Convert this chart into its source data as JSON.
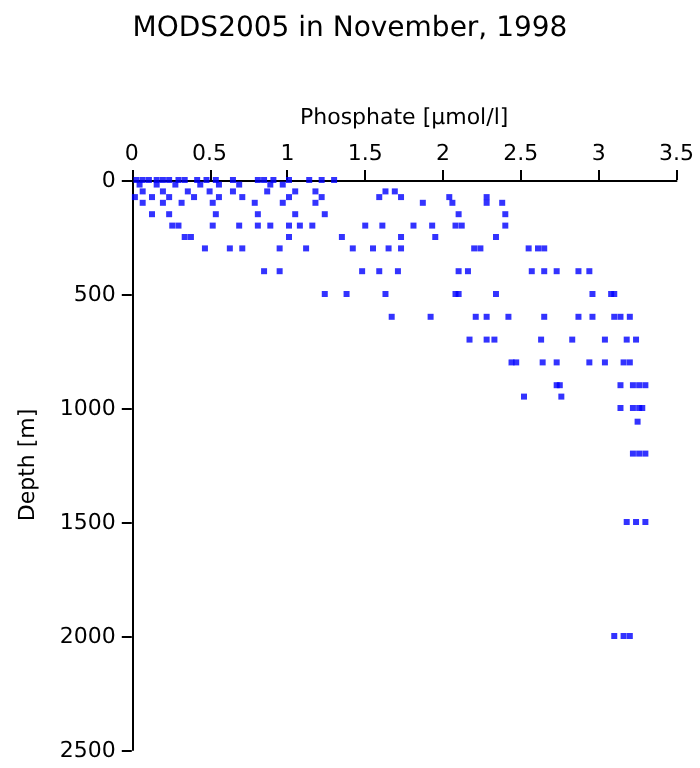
{
  "chart_data": {
    "type": "scatter",
    "title": "MODS2005 in November, 1998",
    "xlabel": "Phosphate [µmol/l]",
    "ylabel": "Depth [m]",
    "xlim": [
      0,
      3.5
    ],
    "xticks": [
      0,
      0.5,
      1,
      1.5,
      2,
      2.5,
      3,
      3.5
    ],
    "ylim": [
      2500,
      0
    ],
    "yticks": [
      0,
      500,
      1000,
      1500,
      2000,
      2500
    ],
    "grid": false,
    "marker": "square",
    "series": [
      {
        "color": "#0000ff",
        "x": [
          0.03,
          0.07,
          0.11,
          0.16,
          0.2,
          0.24,
          0.3,
          0.34,
          0.42,
          0.48,
          0.54,
          0.65,
          0.81,
          0.85,
          0.91,
          1.01,
          1.14,
          1.22,
          1.3,
          0.05,
          0.16,
          0.28,
          0.44,
          0.56,
          0.69,
          0.89,
          0.97,
          0.07,
          0.2,
          0.36,
          0.5,
          0.65,
          0.87,
          1.05,
          1.18,
          1.63,
          1.69,
          0.02,
          0.13,
          0.24,
          0.4,
          0.56,
          0.71,
          1.01,
          1.22,
          1.59,
          1.73,
          2.04,
          2.28,
          0.07,
          0.2,
          0.32,
          0.52,
          0.79,
          0.97,
          1.18,
          1.87,
          2.06,
          2.28,
          2.38,
          0.13,
          0.24,
          0.54,
          0.81,
          1.05,
          1.24,
          2.1,
          2.4,
          0.26,
          0.3,
          0.52,
          0.69,
          0.81,
          0.89,
          1.01,
          1.08,
          1.16,
          1.5,
          1.61,
          1.81,
          1.93,
          2.08,
          2.12,
          2.4,
          0.34,
          0.38,
          1.01,
          1.35,
          1.73,
          1.95,
          2.34,
          0.47,
          0.63,
          0.71,
          0.95,
          1.12,
          1.42,
          1.55,
          1.65,
          1.73,
          2.2,
          2.24,
          2.55,
          2.61,
          2.65,
          0.85,
          0.95,
          1.48,
          1.59,
          1.71,
          2.1,
          2.16,
          2.57,
          2.65,
          2.73,
          2.87,
          2.94,
          1.24,
          1.38,
          1.63,
          2.08,
          2.1,
          2.34,
          2.96,
          3.08,
          3.1,
          1.67,
          1.92,
          2.21,
          2.28,
          2.42,
          2.65,
          2.87,
          2.96,
          3.1,
          3.14,
          3.2,
          2.17,
          2.28,
          2.33,
          2.63,
          2.83,
          3.04,
          3.18,
          3.24,
          2.44,
          2.47,
          2.64,
          2.73,
          2.94,
          3.04,
          3.16,
          3.2,
          2.73,
          2.75,
          3.14,
          3.22,
          3.26,
          3.3,
          2.52,
          2.76,
          3.14,
          3.22,
          3.26,
          3.28,
          3.25,
          3.22,
          3.26,
          3.3,
          3.18,
          3.24,
          3.3,
          3.1,
          3.16,
          3.2
        ],
        "values": [
          0,
          0,
          0,
          0,
          0,
          0,
          0,
          0,
          0,
          0,
          0,
          0,
          0,
          0,
          0,
          0,
          0,
          0,
          0,
          20,
          20,
          20,
          20,
          20,
          20,
          20,
          20,
          50,
          50,
          50,
          50,
          50,
          50,
          50,
          50,
          50,
          50,
          75,
          75,
          75,
          75,
          75,
          75,
          75,
          75,
          75,
          75,
          75,
          75,
          100,
          100,
          100,
          100,
          100,
          100,
          100,
          100,
          100,
          100,
          100,
          150,
          150,
          150,
          150,
          150,
          150,
          150,
          150,
          200,
          200,
          200,
          200,
          200,
          200,
          200,
          200,
          200,
          200,
          200,
          200,
          200,
          200,
          200,
          200,
          250,
          250,
          250,
          250,
          250,
          250,
          250,
          300,
          300,
          300,
          300,
          300,
          300,
          300,
          300,
          300,
          300,
          300,
          300,
          300,
          300,
          400,
          400,
          400,
          400,
          400,
          400,
          400,
          400,
          400,
          400,
          400,
          400,
          500,
          500,
          500,
          500,
          500,
          500,
          500,
          500,
          500,
          600,
          600,
          600,
          600,
          600,
          600,
          600,
          600,
          600,
          600,
          600,
          700,
          700,
          700,
          700,
          700,
          700,
          700,
          700,
          800,
          800,
          800,
          800,
          800,
          800,
          800,
          800,
          900,
          900,
          900,
          900,
          900,
          900,
          950,
          950,
          1000,
          1000,
          1000,
          1000,
          1060,
          1200,
          1200,
          1200,
          1500,
          1500,
          1500,
          2000,
          2000,
          2000
        ]
      }
    ]
  }
}
